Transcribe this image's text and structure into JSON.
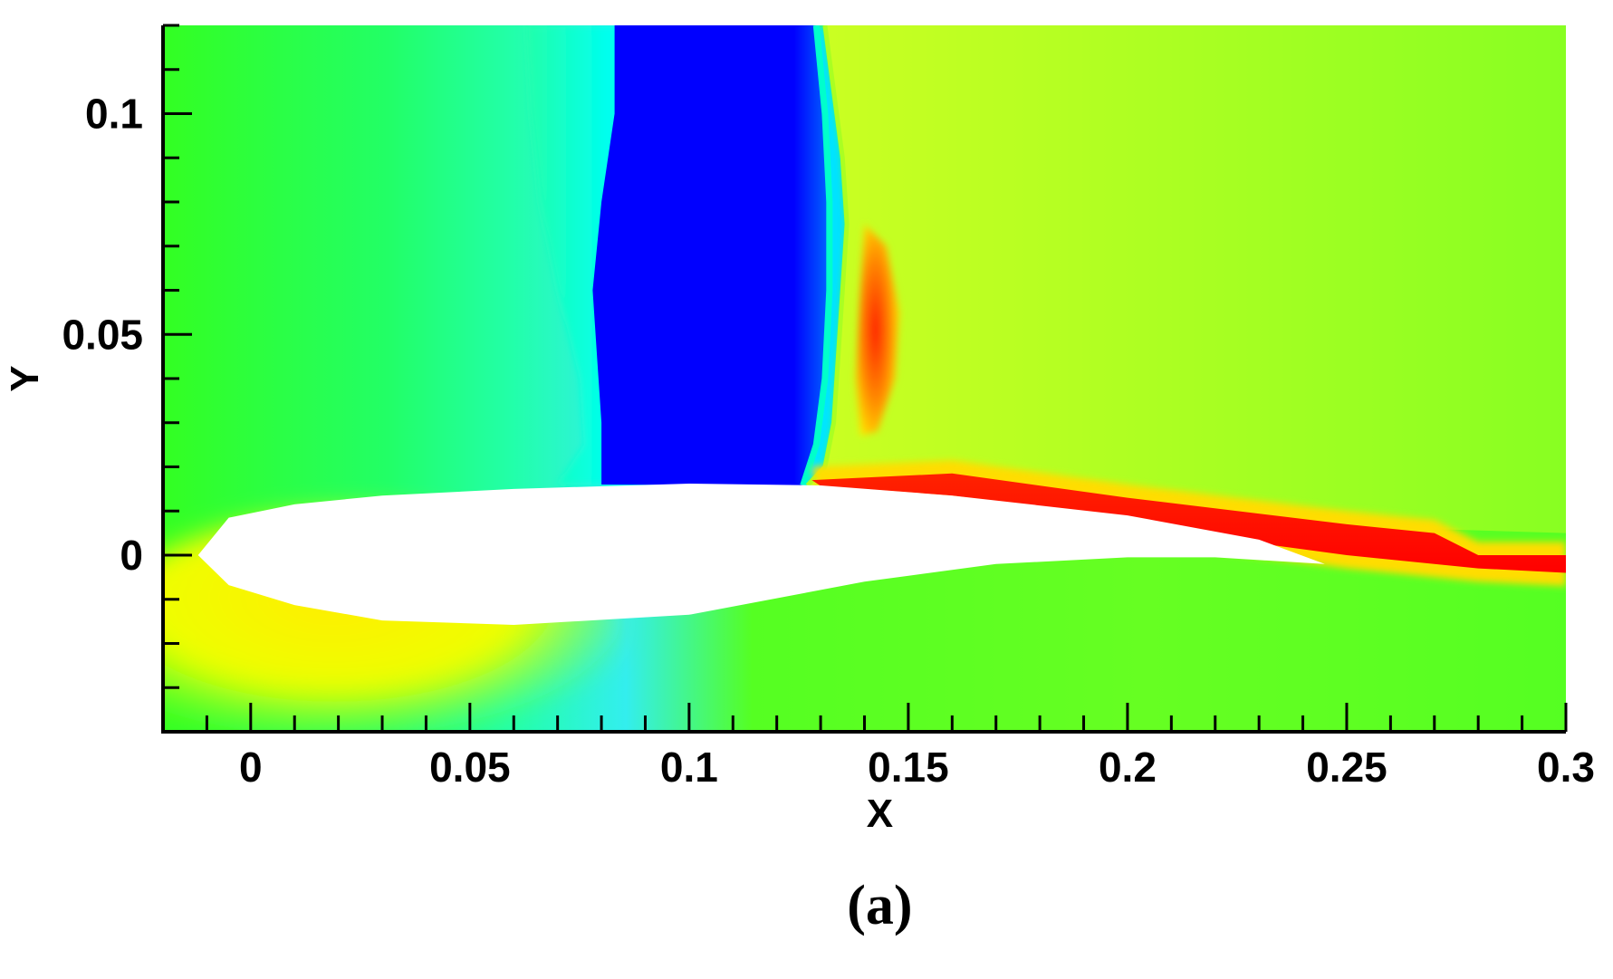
{
  "chart_data": {
    "type": "heatmap",
    "title": "",
    "xlabel": "X",
    "ylabel": "Y",
    "xlim": [
      -0.02,
      0.3
    ],
    "ylim": [
      -0.04,
      0.12
    ],
    "x_ticks": [
      {
        "value": 0,
        "label": "0"
      },
      {
        "value": 0.05,
        "label": "0.05"
      },
      {
        "value": 0.1,
        "label": "0.1"
      },
      {
        "value": 0.15,
        "label": "0.15"
      },
      {
        "value": 0.2,
        "label": "0.2"
      },
      {
        "value": 0.25,
        "label": "0.25"
      },
      {
        "value": 0.3,
        "label": "0.3"
      }
    ],
    "y_ticks": [
      {
        "value": 0,
        "label": "0"
      },
      {
        "value": 0.05,
        "label": "0.05"
      },
      {
        "value": 0.1,
        "label": "0.1"
      }
    ],
    "x_minor_step": 0.01,
    "y_minor_step": 0.01,
    "grid": false,
    "legend": "none",
    "colormap": [
      "#0000ff",
      "#00ffff",
      "#00ff00",
      "#ffff00",
      "#ff0000"
    ],
    "airfoil": {
      "upper": [
        [
          -0.012,
          0
        ],
        [
          -0.005,
          0.0085
        ],
        [
          0.01,
          0.0115
        ],
        [
          0.03,
          0.0135
        ],
        [
          0.06,
          0.015
        ],
        [
          0.1,
          0.0162
        ],
        [
          0.13,
          0.0158
        ],
        [
          0.16,
          0.0135
        ],
        [
          0.2,
          0.009
        ],
        [
          0.23,
          0.0035
        ],
        [
          0.245,
          -0.002
        ]
      ],
      "lower": [
        [
          0.245,
          -0.002
        ],
        [
          0.22,
          -0.0005
        ],
        [
          0.2,
          -0.0005
        ],
        [
          0.17,
          -0.002
        ],
        [
          0.14,
          -0.006
        ],
        [
          0.1,
          -0.0135
        ],
        [
          0.06,
          -0.0158
        ],
        [
          0.03,
          -0.0148
        ],
        [
          0.01,
          -0.0113
        ],
        [
          -0.005,
          -0.0068
        ],
        [
          -0.012,
          0
        ]
      ]
    },
    "features": [
      {
        "name": "expansion-region",
        "x_range": [
          0.08,
          0.13
        ],
        "y_range": [
          0.016,
          0.12
        ],
        "level": "low",
        "color": "#0000ff"
      },
      {
        "name": "shock-wave",
        "x": 0.135,
        "y_range": [
          0.016,
          0.12
        ],
        "level": "jump"
      },
      {
        "name": "post-shock-peak",
        "x_range": [
          0.139,
          0.148
        ],
        "y_range": [
          0.027,
          0.074
        ],
        "level": "high",
        "color": "#ff0000"
      },
      {
        "name": "suction-side-wake",
        "x_range": [
          0.13,
          0.3
        ],
        "y_range": [
          -0.004,
          0.018
        ],
        "level": "high",
        "color": "#ff0000"
      },
      {
        "name": "leading-edge-stagnation",
        "x_range": [
          0.0,
          0.04
        ],
        "y_range": [
          -0.03,
          -0.01
        ],
        "level": "medium-high",
        "color": "#ffff00"
      }
    ]
  },
  "caption": {
    "label": "(a)"
  }
}
